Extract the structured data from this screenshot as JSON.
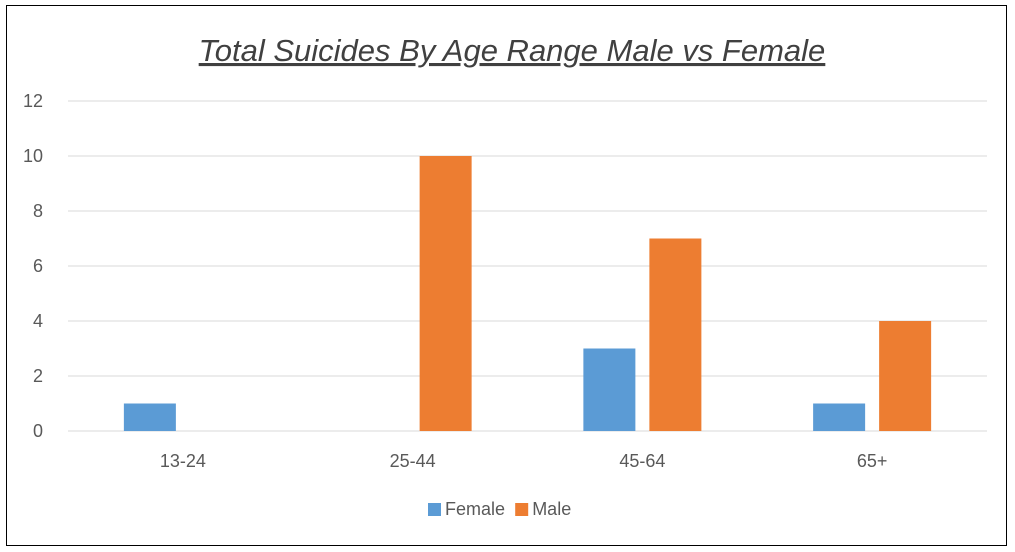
{
  "chart_data": {
    "type": "bar",
    "title": "Total Suicides By Age Range Male vs Female",
    "categories": [
      "13-24",
      "25-44",
      "45-64",
      "65+"
    ],
    "series": [
      {
        "name": "Female",
        "values": [
          1,
          0,
          3,
          1
        ],
        "color": "#5B9BD5"
      },
      {
        "name": "Male",
        "values": [
          0,
          10,
          7,
          4
        ],
        "color": "#ED7D31"
      }
    ],
    "ylim": [
      0,
      12
    ],
    "yticks": [
      0,
      2,
      4,
      6,
      8,
      10,
      12
    ],
    "grid": true,
    "legend": "bottom-center"
  }
}
